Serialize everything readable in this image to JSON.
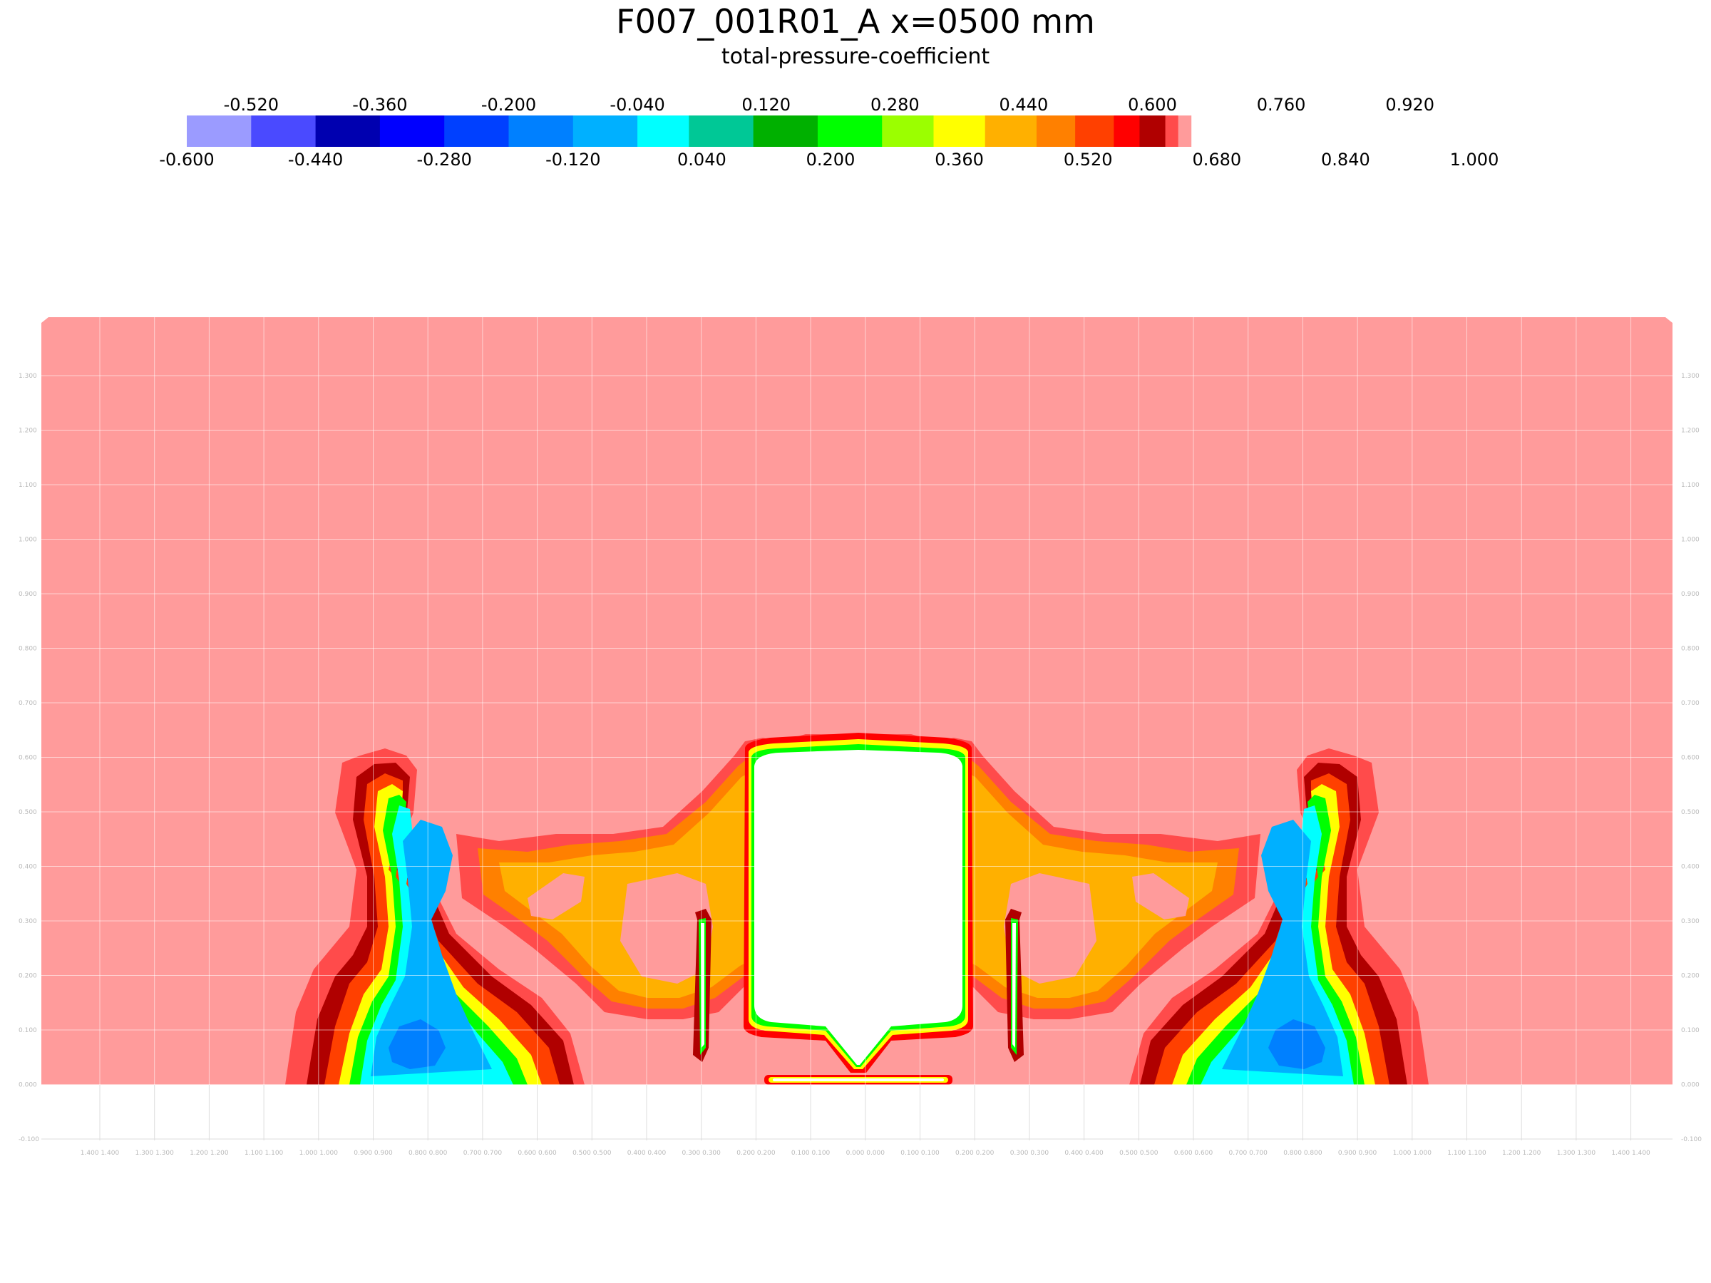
{
  "chart_data": {
    "type": "heatmap",
    "title": "F007_001R01_A x=0500 mm",
    "subtitle": "total-pressure-coefficient",
    "colorbar": {
      "min": -0.6,
      "max": 1.0,
      "colors": [
        "#9b9bff",
        "#4a4aff",
        "#0000b0",
        "#0000ff",
        "#0040ff",
        "#0080ff",
        "#00b0ff",
        "#00ffff",
        "#00c896",
        "#00b000",
        "#00ff00",
        "#9bff00",
        "#ffff00",
        "#ffb000",
        "#ff8000",
        "#ff4000",
        "#ff0000",
        "#b00000",
        "#ff4b4b",
        "#ff9b9b"
      ],
      "widths": [
        0.08,
        0.08,
        0.08,
        0.08,
        0.08,
        0.08,
        0.08,
        0.064,
        0.08,
        0.08,
        0.08,
        0.064,
        0.064,
        0.064,
        0.048,
        0.048,
        0.032,
        0.032,
        0.016,
        0.016
      ],
      "labels_top": [
        "-0.520",
        "-0.360",
        "-0.200",
        "-0.040",
        "0.120",
        "0.280",
        "0.440",
        "0.600",
        "0.760",
        "0.920"
      ],
      "labels_bottom": [
        "-0.600",
        "-0.440",
        "-0.280",
        "-0.120",
        "0.040",
        "0.200",
        "0.360",
        "0.520",
        "0.680",
        "0.840",
        "1.000"
      ]
    },
    "y_axis_labels": [
      "1.300",
      "1.200",
      "1.100",
      "1.000",
      "0.900",
      "0.800",
      "0.700",
      "0.600",
      "0.500",
      "0.400",
      "0.300",
      "0.200",
      "0.100",
      "0.000",
      "-0.100"
    ],
    "x_axis_labels": [
      "1.400",
      "1.300",
      "1.200",
      "1.100",
      "1.000",
      "0.900",
      "0.800",
      "0.700",
      "0.600",
      "0.500",
      "0.400",
      "0.300",
      "0.200",
      "0.100",
      "0.000",
      "0.100",
      "0.200",
      "0.300",
      "0.400",
      "0.500",
      "0.600",
      "0.700",
      "0.800",
      "0.900",
      "1.000",
      "1.100",
      "1.200",
      "1.300",
      "1.400"
    ],
    "freestream_value": 1.0,
    "grid": true
  }
}
